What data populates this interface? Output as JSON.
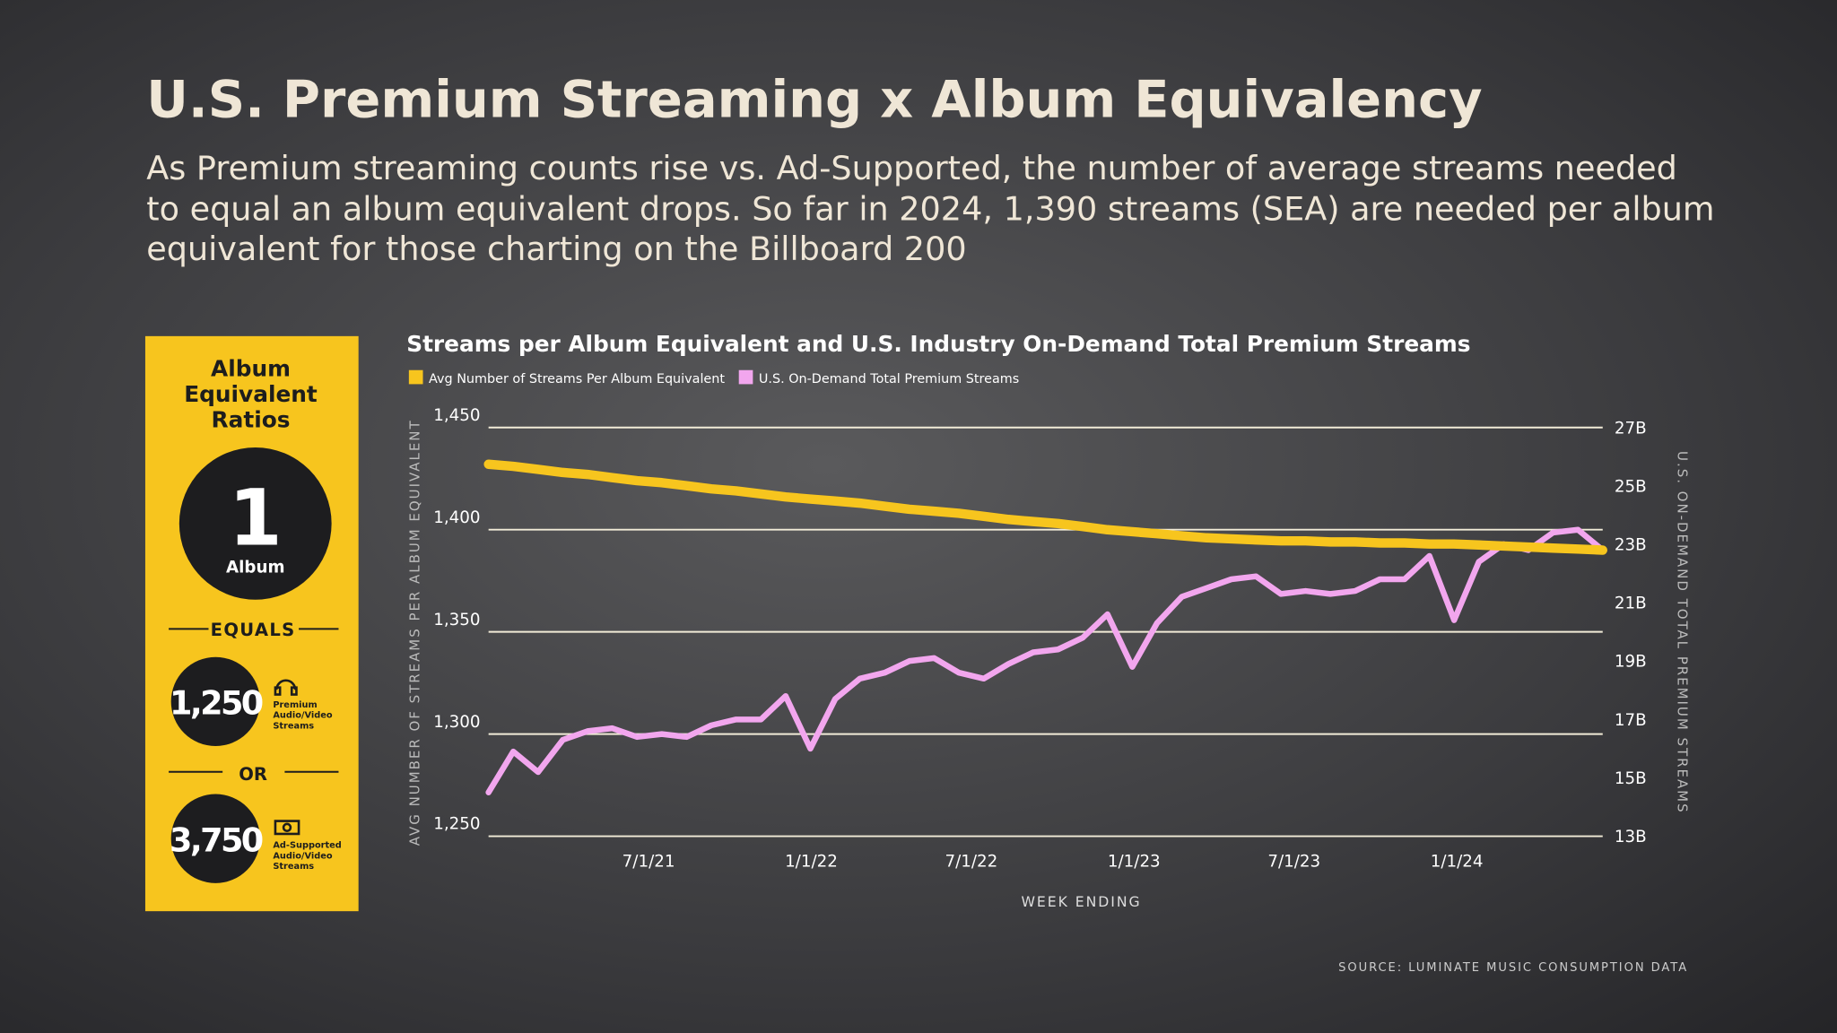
{
  "title": "U.S. Premium Streaming x Album Equivalency",
  "subtitle_lines": [
    "As Premium streaming counts rise vs. Ad-Supported, the number of average streams needed",
    "to equal an album equivalent drops. So far in 2024, 1,390 streams (SEA) are needed per album",
    "equivalent for those charting on the Billboard 200"
  ],
  "panel": {
    "heading_lines": [
      "Album",
      "Equivalent",
      "Ratios"
    ],
    "big_number": "1",
    "big_label": "Album",
    "equals": "EQUALS",
    "premium_number": "1,250",
    "premium_label_lines": [
      "Premium",
      "Audio/Video",
      "Streams"
    ],
    "or": "OR",
    "ad_number": "3,750",
    "ad_label_lines": [
      "Ad-Supported",
      "Audio/Video",
      "Streams"
    ]
  },
  "source": "SOURCE: LUMINATE MUSIC CONSUMPTION DATA",
  "chart_data": {
    "type": "line",
    "title": "Streams per Album Equivalent and U.S. Industry On-Demand Total Premium Streams",
    "x_label": "WEEK ENDING",
    "y_label": "AVG NUMBER OF STREAMS PER ALBUM EQUIVALENT",
    "y2_label": "U.S. ON-DEMAND TOTAL PREMIUM STREAMS",
    "legend": "top-left",
    "grid": true,
    "x": [
      "1/1/21",
      "1/29/21",
      "2/26/21",
      "3/26/21",
      "4/23/21",
      "5/21/21",
      "6/18/21",
      "7/16/21",
      "8/13/21",
      "9/10/21",
      "10/8/21",
      "11/5/21",
      "12/3/21",
      "12/31/21",
      "1/28/22",
      "2/25/22",
      "3/25/22",
      "4/22/22",
      "5/20/22",
      "6/17/22",
      "7/15/22",
      "8/12/22",
      "9/9/22",
      "10/7/22",
      "11/4/22",
      "12/2/22",
      "12/30/22",
      "1/27/23",
      "2/24/23",
      "3/24/23",
      "4/21/23",
      "5/19/23",
      "6/16/23",
      "7/14/23",
      "8/11/23",
      "9/8/23",
      "10/6/23",
      "11/3/23",
      "12/1/23",
      "12/29/23",
      "1/26/24",
      "2/23/24",
      "3/22/24",
      "4/19/24",
      "5/17/24",
      "6/14/24"
    ],
    "xlim": [
      "1/1/21",
      "6/14/24"
    ],
    "xticks": [
      "7/1/21",
      "1/1/22",
      "7/1/22",
      "1/1/23",
      "7/1/23",
      "1/1/24"
    ],
    "ylim": [
      1250,
      1450
    ],
    "yticks": [
      {
        "value": 1250,
        "label": "1,250"
      },
      {
        "value": 1300,
        "label": "1,300"
      },
      {
        "value": 1350,
        "label": "1,350"
      },
      {
        "value": 1400,
        "label": "1,400"
      },
      {
        "value": 1450,
        "label": "1,450"
      }
    ],
    "y2lim": [
      13,
      27
    ],
    "y2ticks": [
      {
        "value": 13,
        "label": "13B"
      },
      {
        "value": 15,
        "label": "15B"
      },
      {
        "value": 17,
        "label": "17B"
      },
      {
        "value": 19,
        "label": "19B"
      },
      {
        "value": 21,
        "label": "21B"
      },
      {
        "value": 23,
        "label": "23B"
      },
      {
        "value": 25,
        "label": "25B"
      },
      {
        "value": 27,
        "label": "27B"
      }
    ],
    "series": [
      {
        "name": "Avg Number of Streams Per Album Equivalent",
        "color": "#f7c51e",
        "axis": "y",
        "values": [
          1432,
          1431,
          1429.5,
          1428,
          1427,
          1425.5,
          1424,
          1423,
          1421.5,
          1420,
          1419,
          1417.5,
          1416,
          1415,
          1414,
          1413,
          1411.5,
          1410,
          1409,
          1408,
          1406.5,
          1405,
          1404,
          1403,
          1401.5,
          1400,
          1399,
          1398,
          1397,
          1396,
          1395.5,
          1395,
          1394.5,
          1394.5,
          1394,
          1394,
          1393.5,
          1393.5,
          1393,
          1393,
          1392.5,
          1392,
          1391.5,
          1391,
          1390.5,
          1390
        ]
      },
      {
        "name": "U.S. On-Demand Total Premium Streams",
        "color": "#f2a6ee",
        "axis": "y2",
        "values": [
          14.5,
          15.9,
          15.2,
          16.3,
          16.6,
          16.7,
          16.4,
          16.5,
          16.4,
          16.8,
          17.0,
          17.0,
          17.8,
          16.0,
          17.7,
          18.4,
          18.6,
          19.0,
          19.1,
          18.6,
          18.4,
          18.9,
          19.3,
          19.4,
          19.8,
          20.6,
          18.8,
          20.3,
          21.2,
          21.5,
          21.8,
          21.9,
          21.3,
          21.4,
          21.3,
          21.4,
          21.8,
          21.8,
          22.6,
          20.4,
          22.4,
          23.0,
          22.8,
          23.4,
          23.5,
          22.8
        ]
      }
    ]
  }
}
